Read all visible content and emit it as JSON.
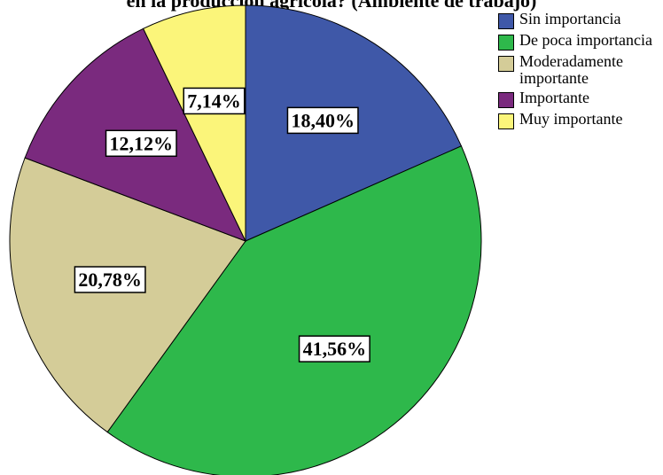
{
  "chart_data": {
    "type": "pie",
    "title": "en la producción agrícola? (Ambiente de trabajo)",
    "categories": [
      "Sin importancia",
      "De poca importancia",
      "Moderadamente importante",
      "Importante",
      "Muy importante"
    ],
    "values": [
      18.4,
      41.56,
      20.78,
      12.12,
      7.14
    ],
    "value_labels": [
      "18,40%",
      "41,56%",
      "20,78%",
      "12,12%",
      "7,14%"
    ],
    "colors": [
      "#3f58a8",
      "#2eb84b",
      "#d4cc98",
      "#7a2a7e",
      "#fbf57a"
    ],
    "legend": "right"
  }
}
